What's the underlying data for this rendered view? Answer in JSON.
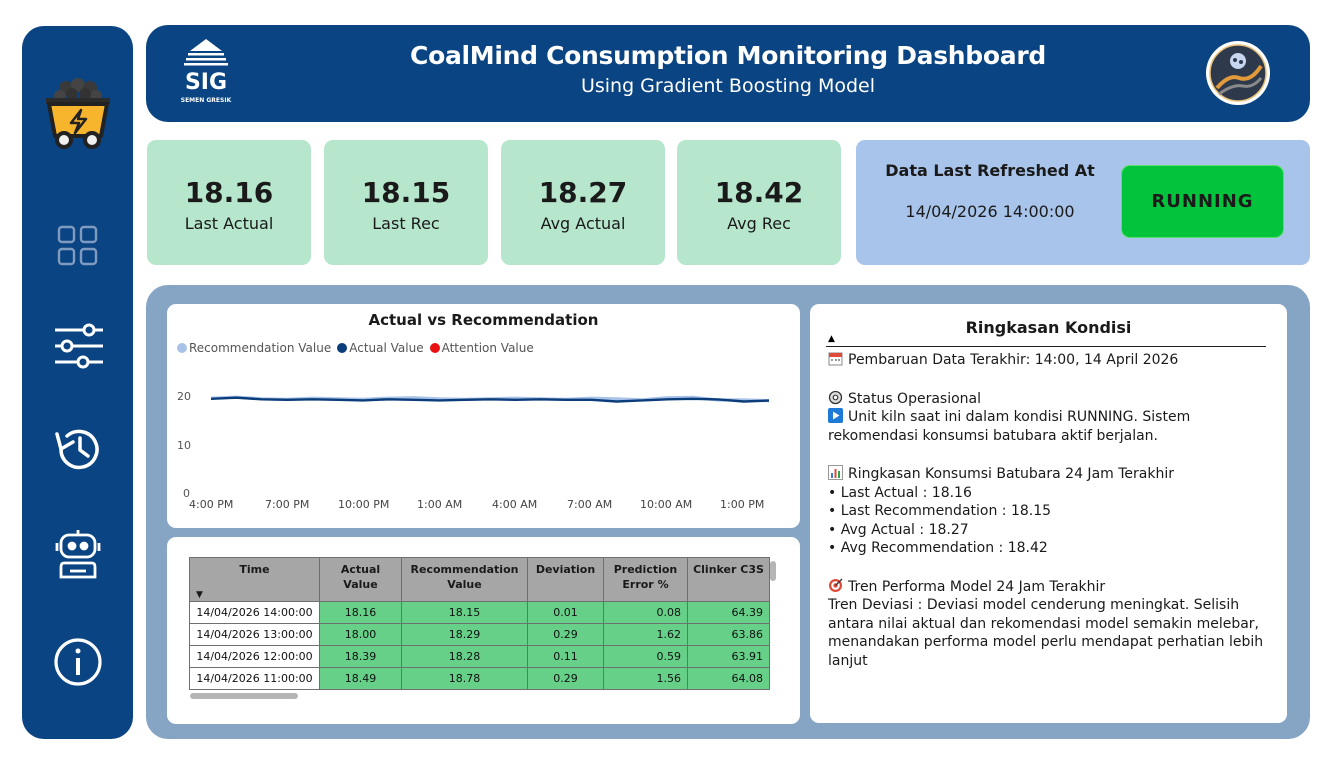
{
  "app": {
    "title": "CoalMind Consumption Monitoring Dashboard",
    "subtitle": "Using Gradient Boosting Model",
    "logo_text": "SEMEN GRESIK"
  },
  "sidebar": {
    "items": [
      {
        "icon": "coal-cart-icon"
      },
      {
        "icon": "dashboard-grid-icon"
      },
      {
        "icon": "sliders-icon"
      },
      {
        "icon": "history-icon"
      },
      {
        "icon": "robot-icon"
      },
      {
        "icon": "info-icon"
      }
    ]
  },
  "kpis": [
    {
      "value": "18.16",
      "label": "Last Actual"
    },
    {
      "value": "18.15",
      "label": "Last Rec"
    },
    {
      "value": "18.27",
      "label": "Avg Actual"
    },
    {
      "value": "18.42",
      "label": "Avg Rec"
    }
  ],
  "refresh": {
    "title": "Data Last Refreshed At",
    "timestamp": "14/04/2026 14:00:00",
    "status": "RUNNING"
  },
  "chart": {
    "title": "Actual vs Recommendation",
    "legend": [
      "Recommendation Value",
      "Actual Value",
      "Attention Value"
    ],
    "colors": {
      "recommendation": "#a9c3e8",
      "actual": "#0b3d7a",
      "attention": "#e81010"
    }
  },
  "chart_data": {
    "type": "line",
    "title": "Actual vs Recommendation",
    "x_ticks": [
      "4:00 PM",
      "7:00 PM",
      "10:00 PM",
      "1:00 AM",
      "4:00 AM",
      "7:00 AM",
      "10:00 AM",
      "1:00 PM"
    ],
    "y_ticks": [
      "0",
      "10",
      "20"
    ],
    "ylim": [
      0,
      22
    ],
    "x": [
      "4:00 PM",
      "5:00 PM",
      "6:00 PM",
      "7:00 PM",
      "8:00 PM",
      "9:00 PM",
      "10:00 PM",
      "11:00 PM",
      "12:00 AM",
      "1:00 AM",
      "2:00 AM",
      "3:00 AM",
      "4:00 AM",
      "5:00 AM",
      "6:00 AM",
      "7:00 AM",
      "8:00 AM",
      "9:00 AM",
      "10:00 AM",
      "11:00 AM",
      "12:00 PM",
      "1:00 PM",
      "2:00 PM"
    ],
    "series": [
      {
        "name": "Recommendation Value",
        "values": [
          18.6,
          18.8,
          18.5,
          18.4,
          18.6,
          18.5,
          18.4,
          18.6,
          18.7,
          18.5,
          18.4,
          18.5,
          18.6,
          18.5,
          18.4,
          18.6,
          18.5,
          18.3,
          18.7,
          18.78,
          18.28,
          18.29,
          18.15
        ]
      },
      {
        "name": "Actual Value",
        "values": [
          18.5,
          18.7,
          18.4,
          18.3,
          18.4,
          18.3,
          18.2,
          18.4,
          18.3,
          18.2,
          18.3,
          18.4,
          18.3,
          18.4,
          18.3,
          18.3,
          18.0,
          18.2,
          18.4,
          18.49,
          18.39,
          18.0,
          18.16
        ]
      }
    ],
    "legend_position": "top-left",
    "grid": false
  },
  "table": {
    "headers": [
      "Time",
      "Actual Value",
      "Recommendation Value",
      "Deviation",
      "Prediction Error %",
      "Clinker C3S"
    ],
    "rows": [
      [
        "14/04/2026 14:00:00",
        "18.16",
        "18.15",
        "0.01",
        "0.08",
        "64.39"
      ],
      [
        "14/04/2026 13:00:00",
        "18.00",
        "18.29",
        "0.29",
        "1.62",
        "63.86"
      ],
      [
        "14/04/2026 12:00:00",
        "18.39",
        "18.28",
        "0.11",
        "0.59",
        "63.91"
      ],
      [
        "14/04/2026 11:00:00",
        "18.49",
        "18.78",
        "0.29",
        "1.56",
        "64.08"
      ]
    ]
  },
  "summary": {
    "title": "Ringkasan Kondisi",
    "update_line": "Pembaruan Data Terakhir: 14:00, 14 April 2026",
    "status_heading": "Status Operasional",
    "status_text": "Unit kiln saat ini dalam kondisi RUNNING. Sistem rekomendasi konsumsi batubara aktif berjalan.",
    "consumption_heading": "Ringkasan Konsumsi Batubara 24 Jam Terakhir",
    "consumption_items": [
      "• Last Actual : 18.16",
      "• Last Recommendation : 18.15",
      "• Avg Actual : 18.27",
      "• Avg Recommendation : 18.42"
    ],
    "trend_heading": "Tren Performa Model 24 Jam Terakhir",
    "trend_text": "Tren Deviasi : Deviasi model cenderung meningkat. Selisih antara nilai aktual dan rekomendasi model semakin melebar, menandakan performa model perlu mendapat perhatian lebih lanjut"
  }
}
